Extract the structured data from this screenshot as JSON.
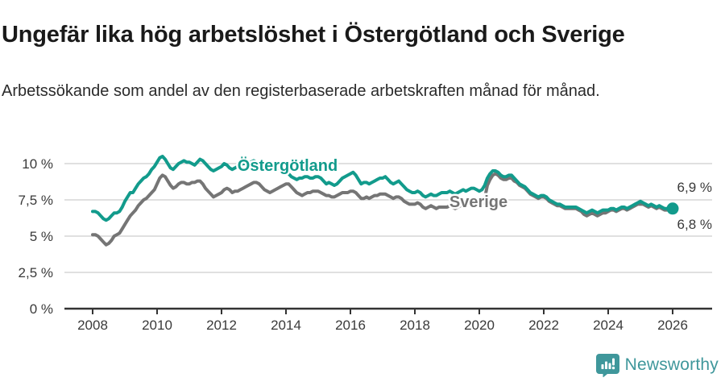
{
  "header": {
    "title": "Ungefär lika hög arbetslöshet i Östergötland och Sverige",
    "subtitle": "Arbetssökande som andel av den registerbaserade arbetskraften månad för månad."
  },
  "colors": {
    "accent_teal": "#129b8c",
    "series_gray": "#757575",
    "axis_text": "#3a3a3a",
    "gridline": "#e0e0e0",
    "axis_line": "#333333",
    "logo_teal": "#3f979b"
  },
  "footer": {
    "brand": "Newsworthy",
    "logo_icon": "speech-bubble-bar-chart-icon"
  },
  "chart_data": {
    "type": "line",
    "title": "Ungefär lika hög arbetslöshet i Östergötland och Sverige",
    "subtitle": "Arbetssökande som andel av den registerbaserade arbetskraften månad för månad.",
    "x_unit": "month",
    "x_start": "2008-01",
    "x_end": "2026-01",
    "x_ticks": [
      "2008",
      "2010",
      "2012",
      "2014",
      "2016",
      "2018",
      "2020",
      "2022",
      "2024",
      "2026"
    ],
    "y_ticks": [
      {
        "value": 0,
        "label": "0 %"
      },
      {
        "value": 2.5,
        "label": "2,5 %"
      },
      {
        "value": 5,
        "label": "5 %"
      },
      {
        "value": 7.5,
        "label": "7,5 %"
      },
      {
        "value": 10,
        "label": "10 %"
      }
    ],
    "ylim": [
      0,
      11.8
    ],
    "grid": true,
    "legend_position": "inline-labels",
    "series": [
      {
        "name": "Östergötland",
        "color": "#129b8c",
        "end_label": "6,9 %",
        "end_value": 6.9,
        "values": [
          6.7,
          6.7,
          6.6,
          6.4,
          6.2,
          6.1,
          6.2,
          6.4,
          6.6,
          6.6,
          6.7,
          7.0,
          7.4,
          7.7,
          8.0,
          8.0,
          8.3,
          8.6,
          8.8,
          9.0,
          9.1,
          9.3,
          9.6,
          9.8,
          10.1,
          10.4,
          10.5,
          10.3,
          10.0,
          9.7,
          9.6,
          9.8,
          10.0,
          10.1,
          10.2,
          10.1,
          10.1,
          10.0,
          9.9,
          10.1,
          10.3,
          10.2,
          10.0,
          9.8,
          9.6,
          9.5,
          9.6,
          9.7,
          9.8,
          10.0,
          9.9,
          9.7,
          9.6,
          9.7,
          9.8,
          9.9,
          10.0,
          10.0,
          10.1,
          10.1,
          10.2,
          10.1,
          10.0,
          9.9,
          9.8,
          9.7,
          9.6,
          9.6,
          9.7,
          9.7,
          9.6,
          9.5,
          9.4,
          9.3,
          9.1,
          9.0,
          8.9,
          9.0,
          9.0,
          9.1,
          9.1,
          9.0,
          9.0,
          9.1,
          9.1,
          9.0,
          8.8,
          8.6,
          8.7,
          8.6,
          8.5,
          8.6,
          8.8,
          9.0,
          9.1,
          9.2,
          9.3,
          9.4,
          9.2,
          8.9,
          8.6,
          8.7,
          8.7,
          8.6,
          8.7,
          8.8,
          8.9,
          9.0,
          9.0,
          9.1,
          8.9,
          8.7,
          8.6,
          8.7,
          8.8,
          8.6,
          8.4,
          8.2,
          8.1,
          8.0,
          8.0,
          8.1,
          8.0,
          7.8,
          7.7,
          7.8,
          7.9,
          7.8,
          7.8,
          7.9,
          8.0,
          8.0,
          8.0,
          8.1,
          8.0,
          7.9,
          8.0,
          8.1,
          8.2,
          8.1,
          8.2,
          8.3,
          8.3,
          8.2,
          8.1,
          8.2,
          8.5,
          9.0,
          9.3,
          9.5,
          9.5,
          9.4,
          9.2,
          9.1,
          9.1,
          9.2,
          9.2,
          9.0,
          8.8,
          8.6,
          8.5,
          8.4,
          8.2,
          8.0,
          7.9,
          7.8,
          7.7,
          7.8,
          7.8,
          7.7,
          7.5,
          7.4,
          7.3,
          7.2,
          7.2,
          7.1,
          7.0,
          7.0,
          7.0,
          7.0,
          7.0,
          6.9,
          6.8,
          6.7,
          6.6,
          6.7,
          6.8,
          6.7,
          6.6,
          6.7,
          6.8,
          6.8,
          6.8,
          6.9,
          6.9,
          6.8,
          6.9,
          7.0,
          7.0,
          6.9,
          7.0,
          7.1,
          7.2,
          7.3,
          7.4,
          7.3,
          7.2,
          7.1,
          7.2,
          7.1,
          7.0,
          7.1,
          7.0,
          6.9,
          6.9,
          7.0,
          6.9
        ]
      },
      {
        "name": "Sverige",
        "color": "#757575",
        "end_label": "6,8 %",
        "end_value": 6.8,
        "values": [
          5.1,
          5.1,
          5.0,
          4.8,
          4.6,
          4.4,
          4.5,
          4.7,
          5.0,
          5.1,
          5.2,
          5.5,
          5.8,
          6.1,
          6.4,
          6.6,
          6.8,
          7.1,
          7.3,
          7.5,
          7.6,
          7.8,
          8.0,
          8.2,
          8.6,
          9.0,
          9.2,
          9.1,
          8.8,
          8.5,
          8.3,
          8.4,
          8.6,
          8.7,
          8.7,
          8.6,
          8.6,
          8.7,
          8.7,
          8.8,
          8.8,
          8.6,
          8.3,
          8.1,
          7.9,
          7.7,
          7.8,
          7.9,
          8.0,
          8.2,
          8.3,
          8.2,
          8.0,
          8.1,
          8.1,
          8.2,
          8.3,
          8.4,
          8.5,
          8.6,
          8.7,
          8.7,
          8.6,
          8.4,
          8.2,
          8.1,
          8.0,
          8.1,
          8.2,
          8.3,
          8.4,
          8.5,
          8.6,
          8.6,
          8.4,
          8.2,
          8.0,
          7.9,
          7.8,
          7.9,
          8.0,
          8.0,
          8.1,
          8.1,
          8.1,
          8.0,
          7.9,
          7.8,
          7.8,
          7.7,
          7.7,
          7.8,
          7.9,
          8.0,
          8.0,
          8.0,
          8.1,
          8.1,
          8.0,
          7.8,
          7.6,
          7.6,
          7.7,
          7.6,
          7.7,
          7.8,
          7.8,
          7.9,
          7.9,
          7.9,
          7.8,
          7.7,
          7.6,
          7.7,
          7.7,
          7.6,
          7.4,
          7.3,
          7.2,
          7.2,
          7.2,
          7.3,
          7.2,
          7.0,
          6.9,
          7.0,
          7.1,
          7.0,
          6.9,
          7.0,
          7.0,
          7.0,
          7.0,
          7.1,
          7.0,
          6.9,
          7.0,
          7.1,
          7.2,
          7.1,
          7.2,
          7.3,
          7.3,
          7.2,
          7.1,
          7.2,
          7.6,
          8.5,
          8.9,
          9.2,
          9.3,
          9.2,
          9.0,
          8.9,
          8.9,
          9.0,
          9.0,
          8.8,
          8.7,
          8.5,
          8.4,
          8.3,
          8.1,
          7.9,
          7.8,
          7.7,
          7.6,
          7.7,
          7.7,
          7.6,
          7.4,
          7.3,
          7.2,
          7.1,
          7.1,
          7.0,
          6.9,
          6.9,
          6.9,
          6.9,
          6.9,
          6.8,
          6.7,
          6.5,
          6.4,
          6.5,
          6.6,
          6.5,
          6.4,
          6.5,
          6.6,
          6.6,
          6.7,
          6.8,
          6.8,
          6.7,
          6.8,
          6.9,
          6.9,
          6.8,
          6.9,
          7.0,
          7.1,
          7.2,
          7.2,
          7.2,
          7.1,
          7.0,
          7.1,
          7.0,
          6.9,
          7.0,
          6.9,
          6.8,
          6.8,
          6.9,
          6.8
        ]
      }
    ]
  }
}
